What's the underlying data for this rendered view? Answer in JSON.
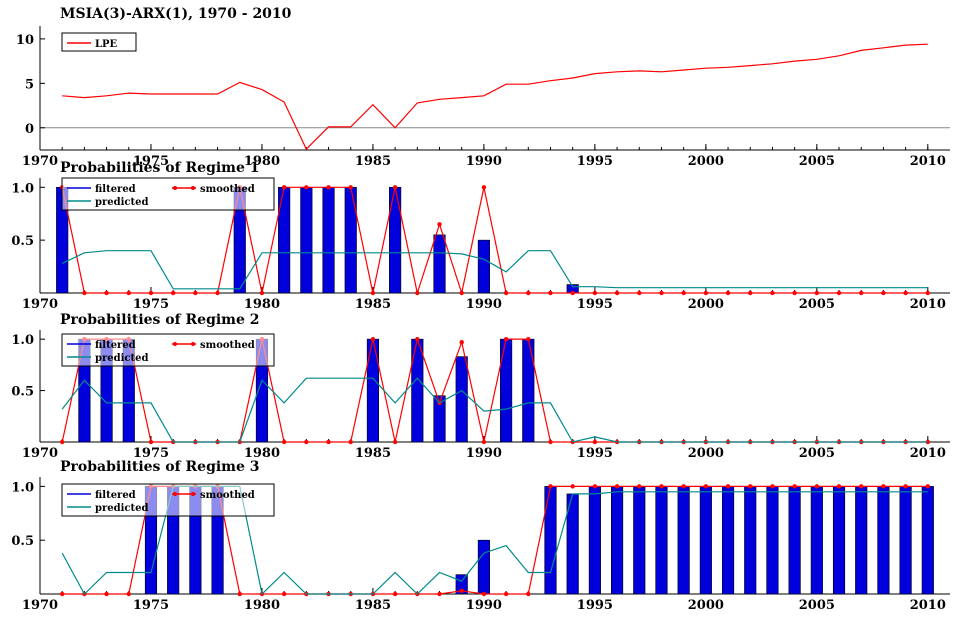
{
  "chart_data": [
    {
      "type": "line",
      "title": "MSIA(3)-ARX(1), 1970 - 2010",
      "x": [
        1971,
        1972,
        1973,
        1974,
        1975,
        1976,
        1977,
        1978,
        1979,
        1980,
        1981,
        1982,
        1983,
        1984,
        1985,
        1986,
        1987,
        1988,
        1989,
        1990,
        1991,
        1992,
        1993,
        1994,
        1995,
        1996,
        1997,
        1998,
        1999,
        2000,
        2001,
        2002,
        2003,
        2004,
        2005,
        2006,
        2007,
        2008,
        2009,
        2010
      ],
      "series": [
        {
          "name": "LPE",
          "type": "line",
          "color": "#ff0000",
          "values": [
            3.6,
            3.4,
            3.6,
            3.9,
            3.8,
            3.8,
            3.8,
            3.8,
            5.1,
            4.3,
            2.9,
            -2.4,
            0.1,
            0.1,
            2.6,
            0.0,
            2.8,
            3.2,
            3.4,
            3.6,
            4.9,
            4.9,
            5.3,
            5.6,
            6.1,
            6.3,
            6.4,
            6.3,
            6.5,
            6.7,
            6.8,
            7.0,
            7.2,
            7.5,
            7.7,
            8.1,
            8.7,
            9.0,
            9.3,
            9.4
          ]
        }
      ],
      "xlim": [
        1970,
        2011
      ],
      "ylim": [
        -2.5,
        11
      ],
      "yticks": [
        0,
        5,
        10
      ],
      "xticks": [
        1970,
        1975,
        1980,
        1985,
        1990,
        1995,
        2000,
        2005,
        2010
      ],
      "zero_line": true,
      "legend_position": "top-left"
    },
    {
      "type": "bar",
      "title": "Probabilities of Regime 1",
      "x": [
        1971,
        1972,
        1973,
        1974,
        1975,
        1976,
        1977,
        1978,
        1979,
        1980,
        1981,
        1982,
        1983,
        1984,
        1985,
        1986,
        1987,
        1988,
        1989,
        1990,
        1991,
        1992,
        1993,
        1994,
        1995,
        1996,
        1997,
        1998,
        1999,
        2000,
        2001,
        2002,
        2003,
        2004,
        2005,
        2006,
        2007,
        2008,
        2009,
        2010
      ],
      "series": [
        {
          "name": "filtered",
          "type": "bar",
          "color": "#0000dd",
          "values": [
            1,
            0,
            0,
            0,
            0,
            0,
            0,
            0,
            1,
            0,
            1,
            1,
            1,
            1,
            0,
            1,
            0,
            0.55,
            0,
            0.5,
            0,
            0,
            0,
            0.08,
            0,
            0,
            0,
            0,
            0,
            0,
            0,
            0,
            0,
            0,
            0,
            0,
            0,
            0,
            0,
            0
          ]
        },
        {
          "name": "smoothed",
          "type": "line",
          "color": "#ff0000",
          "markers": true,
          "values": [
            1,
            0,
            0,
            0,
            0,
            0,
            0,
            0,
            1,
            0,
            1,
            1,
            1,
            1,
            0,
            1,
            0,
            0.65,
            0,
            1,
            0,
            0,
            0,
            0,
            0,
            0,
            0,
            0,
            0,
            0,
            0,
            0,
            0,
            0,
            0,
            0,
            0,
            0,
            0,
            0
          ]
        },
        {
          "name": "predicted",
          "type": "line",
          "color": "#008b8b",
          "values": [
            0.28,
            0.38,
            0.4,
            0.4,
            0.4,
            0.04,
            0.04,
            0.04,
            0.04,
            0.38,
            0.38,
            0.38,
            0.38,
            0.38,
            0.38,
            0.38,
            0.38,
            0.38,
            0.37,
            0.32,
            0.2,
            0.4,
            0.4,
            0.06,
            0.06,
            0.05,
            0.05,
            0.05,
            0.05,
            0.05,
            0.05,
            0.05,
            0.05,
            0.05,
            0.05,
            0.05,
            0.05,
            0.05,
            0.05,
            0.05
          ]
        }
      ],
      "xlim": [
        1970,
        2011
      ],
      "ylim": [
        0,
        1.05
      ],
      "yticks": [
        0.5,
        1.0
      ],
      "xticks": [
        1970,
        1975,
        1980,
        1985,
        1990,
        1995,
        2000,
        2005,
        2010
      ],
      "legend_position": "top-left"
    },
    {
      "type": "bar",
      "title": "Probabilities of Regime 2",
      "x": [
        1971,
        1972,
        1973,
        1974,
        1975,
        1976,
        1977,
        1978,
        1979,
        1980,
        1981,
        1982,
        1983,
        1984,
        1985,
        1986,
        1987,
        1988,
        1989,
        1990,
        1991,
        1992,
        1993,
        1994,
        1995,
        1996,
        1997,
        1998,
        1999,
        2000,
        2001,
        2002,
        2003,
        2004,
        2005,
        2006,
        2007,
        2008,
        2009,
        2010
      ],
      "series": [
        {
          "name": "filtered",
          "type": "bar",
          "color": "#0000dd",
          "values": [
            0,
            1,
            1,
            1,
            0,
            0,
            0,
            0,
            0,
            1,
            0,
            0,
            0,
            0,
            1,
            0,
            1,
            0.45,
            0.83,
            0,
            1,
            1,
            0,
            0,
            0,
            0,
            0,
            0,
            0,
            0,
            0,
            0,
            0,
            0,
            0,
            0,
            0,
            0,
            0,
            0
          ]
        },
        {
          "name": "smoothed",
          "type": "line",
          "color": "#ff0000",
          "markers": true,
          "values": [
            0,
            1,
            1,
            1,
            0,
            0,
            0,
            0,
            0,
            1,
            0,
            0,
            0,
            0,
            1,
            0,
            1,
            0.38,
            0.97,
            0,
            1,
            1,
            0,
            0,
            0,
            0,
            0,
            0,
            0,
            0,
            0,
            0,
            0,
            0,
            0,
            0,
            0,
            0,
            0,
            0
          ]
        },
        {
          "name": "predicted",
          "type": "line",
          "color": "#008b8b",
          "values": [
            0.32,
            0.6,
            0.38,
            0.38,
            0.38,
            0,
            0,
            0,
            0,
            0.6,
            0.38,
            0.62,
            0.62,
            0.62,
            0.62,
            0.38,
            0.62,
            0.38,
            0.5,
            0.3,
            0.32,
            0.38,
            0.38,
            0,
            0.05,
            0,
            0,
            0,
            0,
            0,
            0,
            0,
            0,
            0,
            0,
            0,
            0,
            0,
            0,
            0
          ]
        }
      ],
      "xlim": [
        1970,
        2011
      ],
      "ylim": [
        0,
        1.05
      ],
      "yticks": [
        0.5,
        1.0
      ],
      "xticks": [
        1970,
        1975,
        1980,
        1985,
        1990,
        1995,
        2000,
        2005,
        2010
      ],
      "legend_position": "top-left"
    },
    {
      "type": "bar",
      "title": "Probabilities of Regime 3",
      "x": [
        1971,
        1972,
        1973,
        1974,
        1975,
        1976,
        1977,
        1978,
        1979,
        1980,
        1981,
        1982,
        1983,
        1984,
        1985,
        1986,
        1987,
        1988,
        1989,
        1990,
        1991,
        1992,
        1993,
        1994,
        1995,
        1996,
        1997,
        1998,
        1999,
        2000,
        2001,
        2002,
        2003,
        2004,
        2005,
        2006,
        2007,
        2008,
        2009,
        2010
      ],
      "series": [
        {
          "name": "filtered",
          "type": "bar",
          "color": "#0000dd",
          "values": [
            0,
            0,
            0,
            0,
            1,
            1,
            1,
            1,
            0,
            0,
            0,
            0,
            0,
            0,
            0,
            0,
            0,
            0,
            0.18,
            0.5,
            0,
            0,
            1,
            0.93,
            1,
            1,
            1,
            1,
            1,
            1,
            1,
            1,
            1,
            1,
            1,
            1,
            1,
            1,
            1,
            1
          ]
        },
        {
          "name": "smoothed",
          "type": "line",
          "color": "#ff0000",
          "markers": true,
          "values": [
            0,
            0,
            0,
            0,
            1,
            1,
            1,
            1,
            0,
            0,
            0,
            0,
            0,
            0,
            0,
            0,
            0,
            0,
            0.03,
            0,
            0,
            0,
            1,
            1,
            1,
            1,
            1,
            1,
            1,
            1,
            1,
            1,
            1,
            1,
            1,
            1,
            1,
            1,
            1,
            1
          ]
        },
        {
          "name": "predicted",
          "type": "line",
          "color": "#008b8b",
          "values": [
            0.38,
            0,
            0.2,
            0.2,
            0.2,
            1,
            1,
            1,
            1,
            0,
            0.2,
            0,
            0,
            0,
            0,
            0.2,
            0,
            0.2,
            0.12,
            0.38,
            0.45,
            0.2,
            0.2,
            0.93,
            0.93,
            0.95,
            0.95,
            0.95,
            0.95,
            0.95,
            0.95,
            0.95,
            0.95,
            0.95,
            0.95,
            0.95,
            0.95,
            0.95,
            0.95,
            0.95
          ]
        }
      ],
      "xlim": [
        1970,
        2011
      ],
      "ylim": [
        0,
        1.05
      ],
      "yticks": [
        0.5,
        1.0
      ],
      "xticks": [
        1970,
        1975,
        1980,
        1985,
        1990,
        1995,
        2000,
        2005,
        2010
      ],
      "legend_position": "top-left"
    }
  ]
}
